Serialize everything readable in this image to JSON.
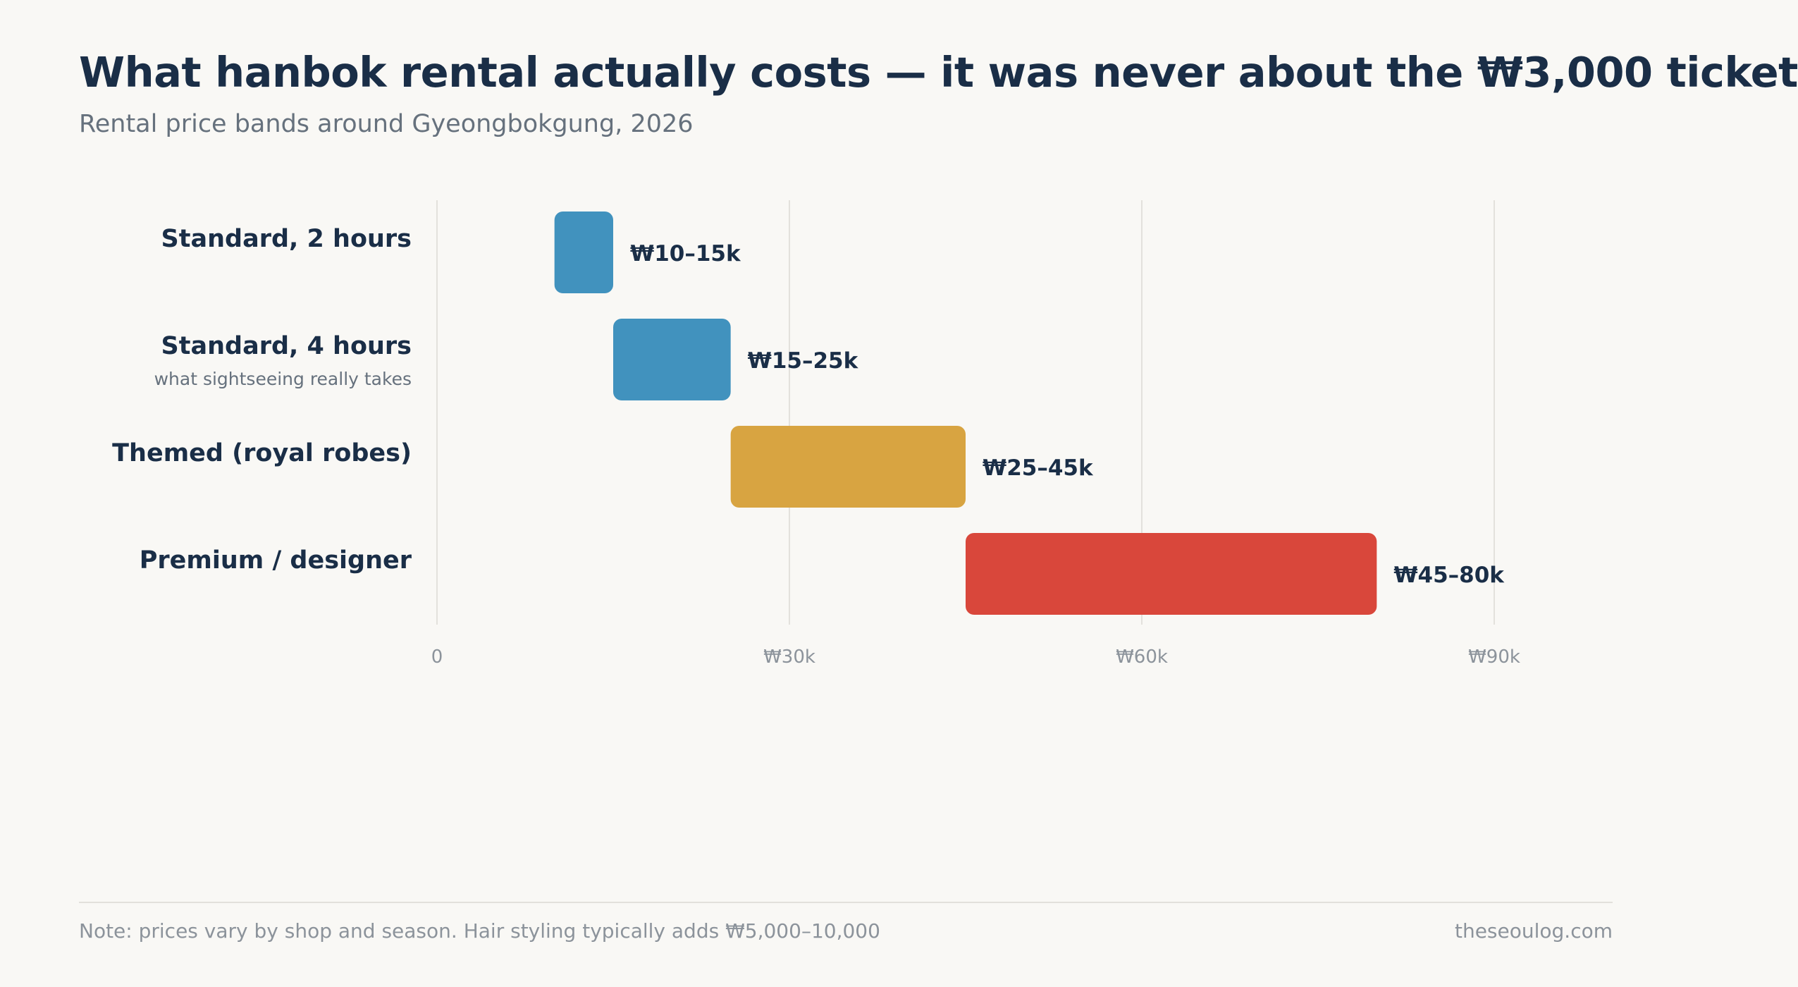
{
  "header": {
    "title": "What hanbok rental actually costs — it was never about the ₩3,000 ticket",
    "subtitle": "Rental price bands around Gyeongbokgung, 2026"
  },
  "chart_data": {
    "type": "bar",
    "orientation": "horizontal-range",
    "xlim": [
      0,
      90000
    ],
    "ticks": [
      {
        "value": 0,
        "label": "0"
      },
      {
        "value": 30000,
        "label": "₩30k"
      },
      {
        "value": 60000,
        "label": "₩60k"
      },
      {
        "value": 90000,
        "label": "₩90k"
      }
    ],
    "grid": true,
    "categories": [
      {
        "label": "Standard, 2 hours",
        "sublabel": "",
        "low": 10000,
        "high": 15000,
        "value_label": "₩10–15k",
        "color": "#4192be"
      },
      {
        "label": "Standard, 4 hours",
        "sublabel": "what sightseeing really takes",
        "low": 15000,
        "high": 25000,
        "value_label": "₩15–25k",
        "color": "#4192be"
      },
      {
        "label": "Themed (royal robes)",
        "sublabel": "",
        "low": 25000,
        "high": 45000,
        "value_label": "₩25–45k",
        "color": "#d8a441"
      },
      {
        "label": "Premium / designer",
        "sublabel": "",
        "low": 45000,
        "high": 80000,
        "value_label": "₩45–80k",
        "color": "#d9473b"
      }
    ]
  },
  "footer": {
    "note": "Note: prices vary by shop and season. Hair styling typically adds ₩5,000–10,000",
    "source": "theseoulog.com"
  }
}
